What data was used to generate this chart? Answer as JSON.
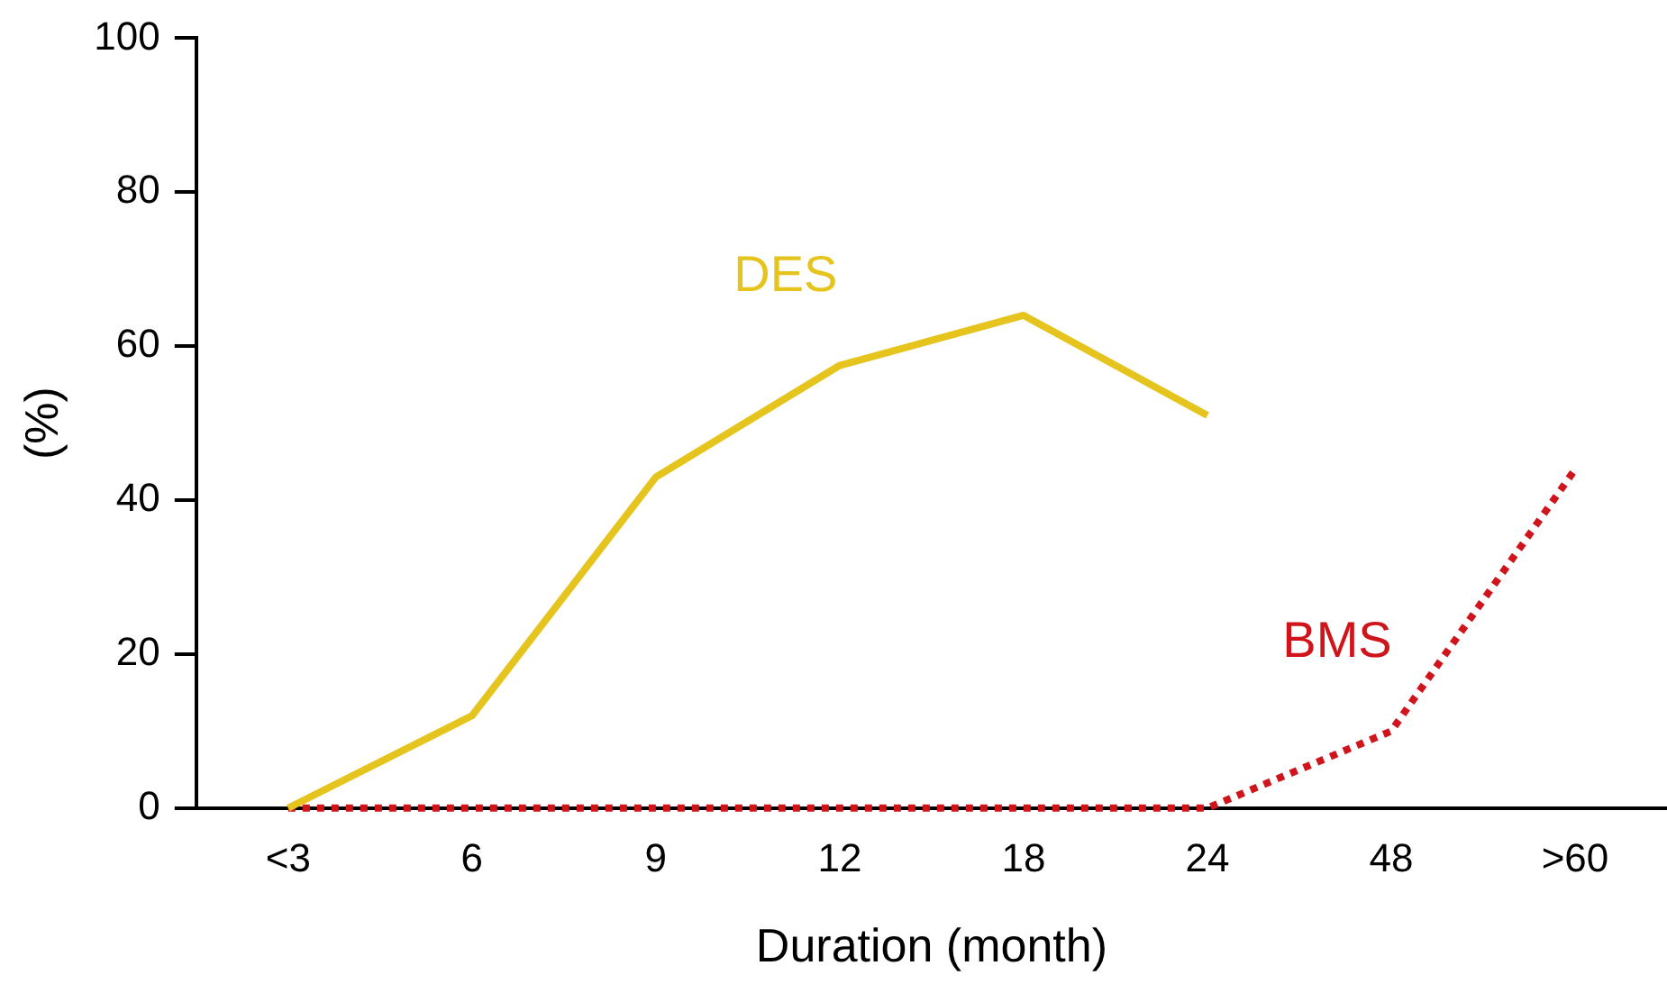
{
  "chart_data": {
    "type": "line",
    "xlabel": "Duration (month)",
    "ylabel": "(%)",
    "categories": [
      "<3",
      "6",
      "9",
      "12",
      "18",
      "24",
      "48",
      ">60"
    ],
    "series": [
      {
        "name": "DES",
        "color": "#e6c41e",
        "line_style": "solid",
        "values": [
          0,
          12,
          43,
          57.5,
          64,
          51,
          null,
          null
        ]
      },
      {
        "name": "BMS",
        "color": "#d0141c",
        "line_style": "dotted",
        "values": [
          0,
          0,
          0,
          0,
          0,
          0,
          10,
          44
        ]
      }
    ],
    "ylim": [
      0,
      100
    ],
    "yticks": [
      0,
      20,
      40,
      60,
      80,
      100
    ],
    "grid": false,
    "legend": false,
    "marker": "none"
  }
}
